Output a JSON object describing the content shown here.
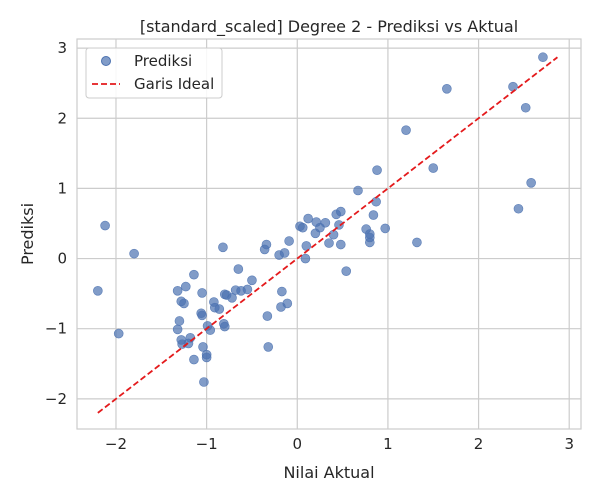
{
  "chart_data": {
    "type": "scatter",
    "title": "[standard_scaled] Degree 2 - Prediksi vs Aktual",
    "xlabel": "Nilai Aktual",
    "ylabel": "Prediksi",
    "xlim": [
      -2.43,
      3.13
    ],
    "ylim": [
      -2.43,
      3.13
    ],
    "xticks": [
      -2,
      -1,
      0,
      1,
      2,
      3
    ],
    "yticks": [
      -2,
      -1,
      0,
      1,
      2,
      3
    ],
    "xtick_labels": [
      "−2",
      "−1",
      "0",
      "1",
      "2",
      "3"
    ],
    "ytick_labels": [
      "−2",
      "−1",
      "0",
      "1",
      "2",
      "3"
    ],
    "grid": true,
    "legend_position": "top-left",
    "colors": {
      "points": "#4c72b0",
      "ideal_line": "#e41a1c",
      "grid": "#cccccc",
      "spine": "#cccccc"
    },
    "series": [
      {
        "name": "Prediksi",
        "kind": "scatter",
        "points": [
          [
            -2.2,
            -0.46
          ],
          [
            -2.12,
            0.47
          ],
          [
            -1.97,
            -1.07
          ],
          [
            -1.8,
            0.07
          ],
          [
            -1.32,
            -0.46
          ],
          [
            -1.32,
            -1.01
          ],
          [
            -1.3,
            -0.89
          ],
          [
            -1.28,
            -0.61
          ],
          [
            -1.28,
            -1.16
          ],
          [
            -1.27,
            -1.22
          ],
          [
            -1.25,
            -0.64
          ],
          [
            -1.23,
            -0.4
          ],
          [
            -1.2,
            -1.21
          ],
          [
            -1.18,
            -1.13
          ],
          [
            -1.14,
            -0.23
          ],
          [
            -1.14,
            -1.44
          ],
          [
            -1.06,
            -0.78
          ],
          [
            -1.05,
            -0.81
          ],
          [
            -1.05,
            -0.49
          ],
          [
            -1.04,
            -1.26
          ],
          [
            -1.03,
            -1.76
          ],
          [
            -1.0,
            -1.37
          ],
          [
            -1.0,
            -1.41
          ],
          [
            -0.99,
            -0.96
          ],
          [
            -0.96,
            -1.02
          ],
          [
            -0.92,
            -0.62
          ],
          [
            -0.91,
            -0.7
          ],
          [
            -0.86,
            -0.72
          ],
          [
            -0.82,
            0.16
          ],
          [
            -0.81,
            -0.93
          ],
          [
            -0.8,
            -0.51
          ],
          [
            -0.8,
            -0.97
          ],
          [
            -0.78,
            -0.52
          ],
          [
            -0.72,
            -0.56
          ],
          [
            -0.68,
            -0.45
          ],
          [
            -0.65,
            -0.15
          ],
          [
            -0.62,
            -0.46
          ],
          [
            -0.55,
            -0.44
          ],
          [
            -0.5,
            -0.31
          ],
          [
            -0.36,
            0.13
          ],
          [
            -0.34,
            0.2
          ],
          [
            -0.33,
            -0.82
          ],
          [
            -0.32,
            -1.26
          ],
          [
            -0.2,
            0.05
          ],
          [
            -0.18,
            -0.69
          ],
          [
            -0.17,
            -0.47
          ],
          [
            -0.14,
            0.08
          ],
          [
            -0.11,
            -0.64
          ],
          [
            -0.09,
            0.25
          ],
          [
            0.03,
            0.46
          ],
          [
            0.06,
            0.44
          ],
          [
            0.09,
            0.0
          ],
          [
            0.1,
            0.18
          ],
          [
            0.12,
            0.57
          ],
          [
            0.2,
            0.36
          ],
          [
            0.21,
            0.52
          ],
          [
            0.25,
            0.44
          ],
          [
            0.31,
            0.51
          ],
          [
            0.35,
            0.22
          ],
          [
            0.4,
            0.34
          ],
          [
            0.43,
            0.63
          ],
          [
            0.46,
            0.48
          ],
          [
            0.48,
            0.67
          ],
          [
            0.48,
            0.2
          ],
          [
            0.54,
            -0.18
          ],
          [
            0.67,
            0.97
          ],
          [
            0.76,
            0.42
          ],
          [
            0.8,
            0.23
          ],
          [
            0.8,
            0.3
          ],
          [
            0.8,
            0.35
          ],
          [
            0.84,
            0.62
          ],
          [
            0.87,
            0.81
          ],
          [
            0.88,
            1.26
          ],
          [
            0.97,
            0.43
          ],
          [
            1.2,
            1.83
          ],
          [
            1.32,
            0.23
          ],
          [
            1.5,
            1.29
          ],
          [
            1.65,
            2.42
          ],
          [
            2.38,
            2.45
          ],
          [
            2.44,
            0.71
          ],
          [
            2.52,
            2.15
          ],
          [
            2.58,
            1.08
          ],
          [
            2.71,
            2.87
          ]
        ]
      },
      {
        "name": "Garis Ideal",
        "kind": "line",
        "style": "dashed",
        "points": [
          [
            -2.2,
            -2.2
          ],
          [
            2.87,
            2.87
          ]
        ]
      }
    ]
  }
}
